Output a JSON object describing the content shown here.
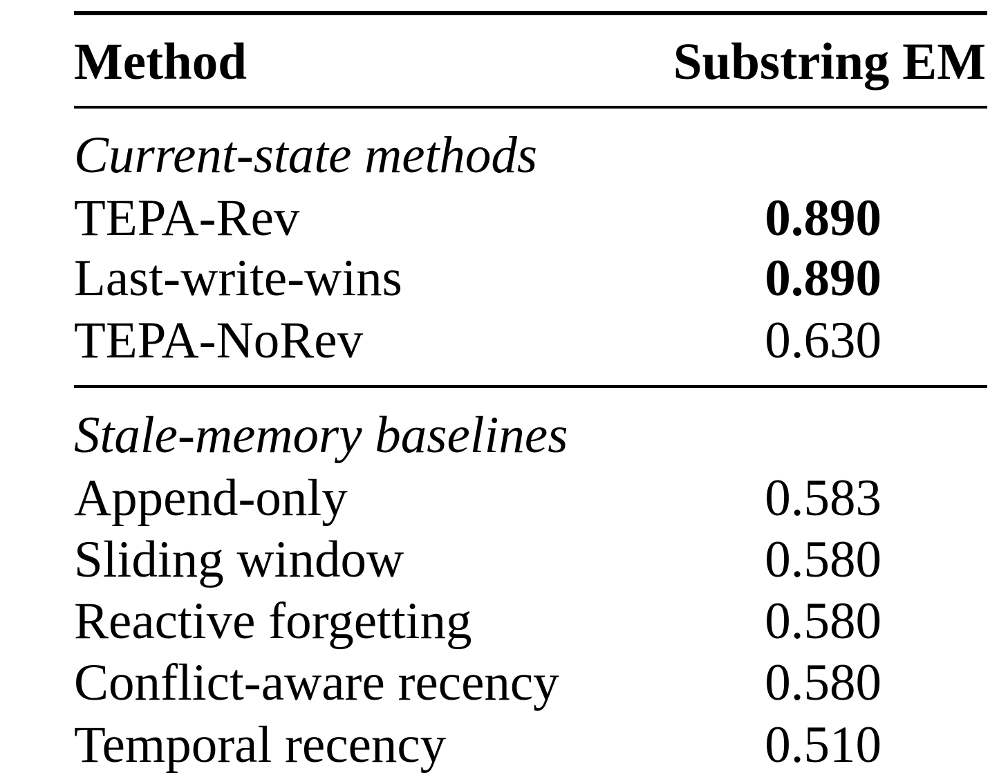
{
  "table": {
    "headers": {
      "method": "Method",
      "score": "Substring EM"
    },
    "sections": [
      {
        "title": "Current-state methods",
        "rows": [
          {
            "method": "TEPA-Rev",
            "score": "0.890",
            "bold": true
          },
          {
            "method": "Last-write-wins",
            "score": "0.890",
            "bold": true
          },
          {
            "method": "TEPA-NoRev",
            "score": "0.630",
            "bold": false
          }
        ]
      },
      {
        "title": "Stale-memory baselines",
        "rows": [
          {
            "method": "Append-only",
            "score": "0.583",
            "bold": false
          },
          {
            "method": "Sliding window",
            "score": "0.580",
            "bold": false
          },
          {
            "method": "Reactive forgetting",
            "score": "0.580",
            "bold": false
          },
          {
            "method": "Conflict-aware recency",
            "score": "0.580",
            "bold": false
          },
          {
            "method": "Temporal recency",
            "score": "0.510",
            "bold": false
          }
        ]
      }
    ]
  }
}
